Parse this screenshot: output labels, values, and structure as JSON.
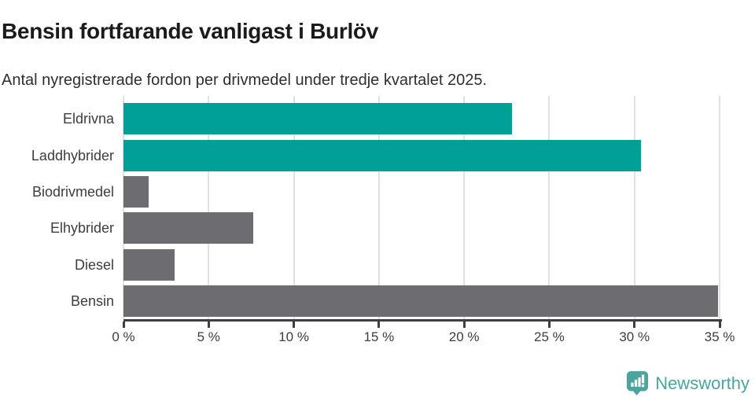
{
  "header": {
    "title": "Bensin fortfarande vanligast i Burlöv",
    "subtitle": "Antal nyregistrerade fordon per drivmedel under tredje kvartalet 2025."
  },
  "chart_data": {
    "type": "bar",
    "orientation": "horizontal",
    "title": "Bensin fortfarande vanligast i Burlöv",
    "subtitle": "Antal nyregistrerade fordon per drivmedel under tredje kvartalet 2025.",
    "categories": [
      "Eldrivna",
      "Laddhybrider",
      "Biodrivmedel",
      "Elhybrider",
      "Diesel",
      "Bensin"
    ],
    "values": [
      22.8,
      30.4,
      1.5,
      7.6,
      3.0,
      34.9
    ],
    "unit": "%",
    "bar_colors": [
      "#00A099",
      "#00A099",
      "#6C6C71",
      "#6C6C71",
      "#6C6C71",
      "#6C6C71"
    ],
    "xlabel": "",
    "ylabel": "",
    "xlim": [
      0,
      35
    ],
    "x_ticks": [
      0,
      5,
      10,
      15,
      20,
      25,
      30,
      35
    ],
    "x_tick_labels": [
      "0 %",
      "5 %",
      "10 %",
      "15 %",
      "20 %",
      "25 %",
      "30 %",
      "35 %"
    ],
    "grid": "vertical-only",
    "legend": "none"
  },
  "footer": {
    "brand": "Newsworthy"
  },
  "colors": {
    "teal_bar": "#00A099",
    "gray_bar": "#6C6C71",
    "axis": "#3F3F3F",
    "gridline": "#E1E1E1",
    "logo_teal": "#4BA49D",
    "title_text": "#1B1B1B",
    "label_text": "#3D3D3D"
  }
}
